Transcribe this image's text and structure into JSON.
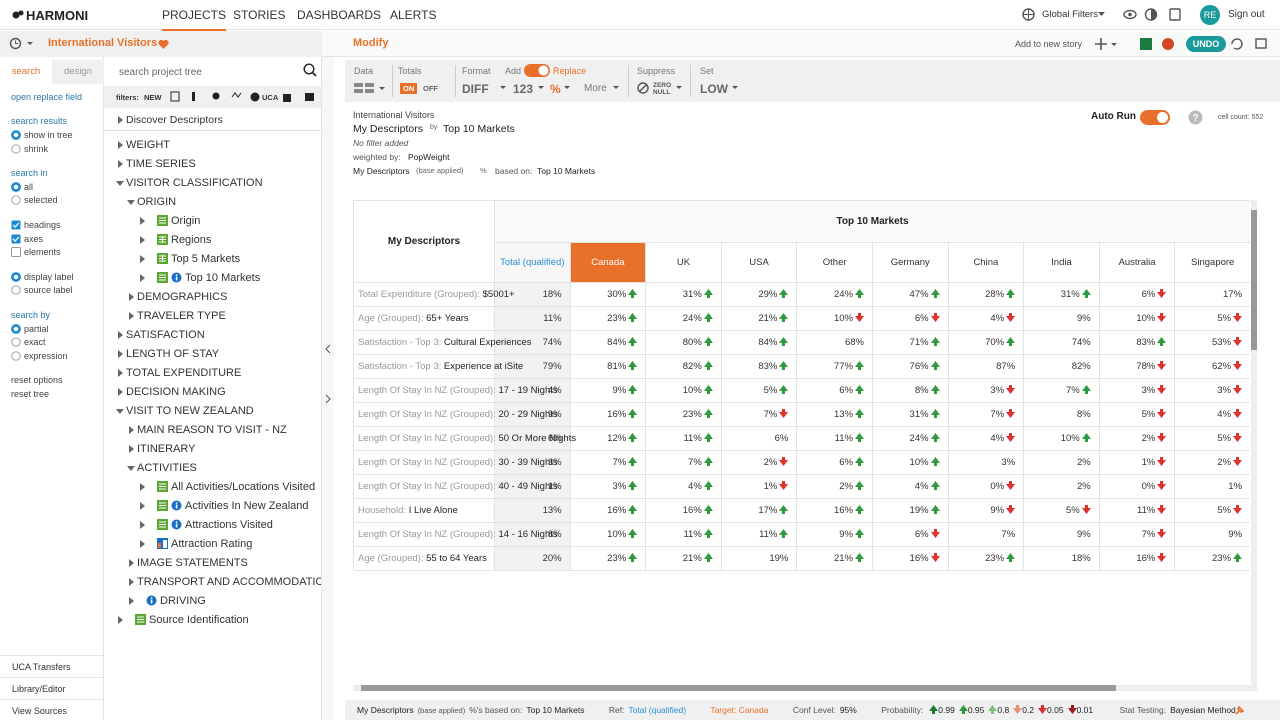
{
  "nav": {
    "logo": "HARMONI",
    "items": [
      "PROJECTS",
      "STORIES",
      "DASHBOARDS",
      "ALERTS"
    ],
    "active": 0,
    "global_filters": "Global Filters",
    "avatar": "RE",
    "sign_out": "Sign out"
  },
  "subbar": {
    "project": "International Visitors",
    "modify": "Modify",
    "add_story": "Add to new story",
    "undo": "UNDO"
  },
  "sidebar": {
    "tabs": [
      "search",
      "design"
    ],
    "active_tab": 0,
    "sections": [
      [
        {
          "text": "open replace field",
          "kind": "link"
        }
      ],
      [
        {
          "text": "search results",
          "kind": "link"
        },
        {
          "text": "show in tree",
          "kind": "radio",
          "checked": true
        },
        {
          "text": "shrink",
          "kind": "radio",
          "checked": false
        }
      ],
      [
        {
          "text": "search in",
          "kind": "link"
        },
        {
          "text": "all",
          "kind": "radio",
          "checked": true
        },
        {
          "text": "selected",
          "kind": "radio",
          "checked": false
        }
      ],
      [
        {
          "text": "headings",
          "kind": "check",
          "checked": true
        },
        {
          "text": "axes",
          "kind": "check",
          "checked": true
        },
        {
          "text": "elements",
          "kind": "check",
          "checked": false
        }
      ],
      [
        {
          "text": "display label",
          "kind": "radio",
          "checked": true
        },
        {
          "text": "source label",
          "kind": "radio",
          "checked": false
        }
      ],
      [
        {
          "text": "search by",
          "kind": "link"
        },
        {
          "text": "partial",
          "kind": "radio",
          "checked": true
        },
        {
          "text": "exact",
          "kind": "radio",
          "checked": false
        },
        {
          "text": "expression",
          "kind": "radio",
          "checked": false
        }
      ],
      [
        {
          "text": "reset options",
          "kind": "action"
        },
        {
          "text": "reset tree",
          "kind": "action"
        }
      ]
    ],
    "bottom": [
      "UCA Transfers",
      "Library/Editor",
      "View Sources"
    ]
  },
  "tree": {
    "search_placeholder": "search project tree",
    "filters_label": "filters:",
    "filters_new": "NEW",
    "filters_uca": "UCA",
    "items": [
      {
        "label": "Discover Descriptors",
        "level": 0,
        "expanded": false,
        "icons": []
      },
      {
        "label": "WEIGHT",
        "level": 0,
        "expanded": false,
        "icons": []
      },
      {
        "label": "TIME SERIES",
        "level": 0,
        "expanded": false,
        "icons": []
      },
      {
        "label": "VISITOR CLASSIFICATION",
        "level": 0,
        "expanded": true,
        "icons": []
      },
      {
        "label": "ORIGIN",
        "level": 1,
        "expanded": true,
        "icons": []
      },
      {
        "label": "Origin",
        "level": 2,
        "expanded": false,
        "icons": [
          "table"
        ]
      },
      {
        "label": "Regions",
        "level": 2,
        "expanded": false,
        "icons": [
          "grid"
        ]
      },
      {
        "label": "Top 5 Markets",
        "level": 2,
        "expanded": false,
        "icons": [
          "grid"
        ]
      },
      {
        "label": "Top 10 Markets",
        "level": 2,
        "expanded": false,
        "icons": [
          "table",
          "info"
        ]
      },
      {
        "label": "DEMOGRAPHICS",
        "level": 1,
        "expanded": false,
        "icons": []
      },
      {
        "label": "TRAVELER TYPE",
        "level": 1,
        "expanded": false,
        "icons": []
      },
      {
        "label": "SATISFACTION",
        "level": 0,
        "expanded": false,
        "icons": []
      },
      {
        "label": "LENGTH OF STAY",
        "level": 0,
        "expanded": false,
        "icons": []
      },
      {
        "label": "TOTAL EXPENDITURE",
        "level": 0,
        "expanded": false,
        "icons": []
      },
      {
        "label": "DECISION MAKING",
        "level": 0,
        "expanded": false,
        "icons": []
      },
      {
        "label": "VISIT TO NEW ZEALAND",
        "level": 0,
        "expanded": true,
        "icons": []
      },
      {
        "label": "MAIN REASON TO VISIT - NZ",
        "level": 1,
        "expanded": false,
        "icons": []
      },
      {
        "label": "ITINERARY",
        "level": 1,
        "expanded": false,
        "icons": []
      },
      {
        "label": "ACTIVITIES",
        "level": 1,
        "expanded": true,
        "icons": []
      },
      {
        "label": "All Activities/Locations Visited",
        "level": 2,
        "expanded": false,
        "icons": [
          "table"
        ]
      },
      {
        "label": "Activities In New Zealand",
        "level": 2,
        "expanded": false,
        "icons": [
          "table",
          "info"
        ]
      },
      {
        "label": "Attractions Visited",
        "level": 2,
        "expanded": false,
        "icons": [
          "table",
          "info"
        ]
      },
      {
        "label": "Attraction Rating",
        "level": 2,
        "expanded": false,
        "icons": [
          "chart"
        ]
      },
      {
        "label": "IMAGE STATEMENTS",
        "level": 1,
        "expanded": false,
        "icons": []
      },
      {
        "label": "TRANSPORT AND ACCOMMODATION",
        "level": 1,
        "expanded": false,
        "icons": []
      },
      {
        "label": "DRIVING",
        "level": 1,
        "expanded": false,
        "icons": [
          "info"
        ]
      },
      {
        "label": "Source Identification",
        "level": 0,
        "expanded": false,
        "icons": [
          "table"
        ]
      }
    ]
  },
  "toolbar": {
    "data": "Data",
    "totals": "Totals",
    "totals_on": "ON",
    "totals_off": "OFF",
    "format": "Format",
    "format_value": "DIFF",
    "add": "Add",
    "replace": "Replace",
    "number": "123",
    "percent": "%",
    "more": "More",
    "suppress": "Suppress",
    "zero": "ZERO",
    "null": "NULL",
    "set": "Set",
    "set_value": "LOW"
  },
  "report": {
    "title": "International Visitors",
    "rows_label": "My Descriptors",
    "by": "by",
    "cols_label": "Top 10 Markets",
    "filter": "No filter added",
    "weighted_by": "weighted by:",
    "weight": "PopWeight",
    "base_rows": "My Descriptors",
    "base_applied": "(base applied)",
    "pct": "%",
    "based_on": "based on:",
    "base_cols": "Top 10 Markets",
    "auto_run": "Auto Run",
    "cell_count": "cell count: 552"
  },
  "table": {
    "corner": "My Descriptors",
    "banner": "Top 10 Markets",
    "columns": [
      "Total (qualified)",
      "Canada",
      "UK",
      "USA",
      "Other",
      "Germany",
      "China",
      "India",
      "Australia",
      "Singapore"
    ],
    "highlight_column": 1,
    "rows": [
      {
        "prefix": "Total Expenditure (Grouped):",
        "label": "$5001+",
        "cells": [
          "18%",
          "30%",
          "31%",
          "29%",
          "24%",
          "47%",
          "28%",
          "31%",
          "6%",
          "17%"
        ],
        "arrows": [
          null,
          "up",
          "up",
          "up",
          "up",
          "up",
          "up",
          "up",
          "down",
          null
        ]
      },
      {
        "prefix": "Age (Grouped):",
        "label": "65+ Years",
        "cells": [
          "11%",
          "23%",
          "24%",
          "21%",
          "10%",
          "6%",
          "4%",
          "9%",
          "10%",
          "5%"
        ],
        "arrows": [
          null,
          "up",
          "up",
          "up",
          "down",
          "down",
          "down",
          null,
          "down",
          "down"
        ]
      },
      {
        "prefix": "Satisfaction - Top 3:",
        "label": "Cultural Experiences",
        "cells": [
          "74%",
          "84%",
          "80%",
          "84%",
          "68%",
          "71%",
          "70%",
          "74%",
          "83%",
          "53%"
        ],
        "arrows": [
          null,
          "up",
          "up",
          "up",
          null,
          "up",
          "up",
          null,
          "up",
          "down"
        ]
      },
      {
        "prefix": "Satisfaction - Top 3:",
        "label": "Experience at iSite",
        "cells": [
          "79%",
          "81%",
          "82%",
          "83%",
          "77%",
          "76%",
          "87%",
          "82%",
          "78%",
          "62%"
        ],
        "arrows": [
          null,
          "up",
          "up",
          "up",
          "up",
          "up",
          null,
          null,
          "down",
          "down"
        ]
      },
      {
        "prefix": "Length Of Stay In NZ (Grouped):",
        "label": "17 - 19 Nights",
        "cells": [
          "4%",
          "9%",
          "10%",
          "5%",
          "6%",
          "8%",
          "3%",
          "7%",
          "3%",
          "3%"
        ],
        "arrows": [
          null,
          "up",
          "up",
          "up",
          "up",
          "up",
          "down",
          "up",
          "down",
          "down"
        ]
      },
      {
        "prefix": "Length Of Stay In NZ (Grouped):",
        "label": "20 - 29 Nights",
        "cells": [
          "9%",
          "16%",
          "23%",
          "7%",
          "13%",
          "31%",
          "7%",
          "8%",
          "5%",
          "4%"
        ],
        "arrows": [
          null,
          "up",
          "up",
          "down",
          "up",
          "up",
          "down",
          null,
          "down",
          "down"
        ]
      },
      {
        "prefix": "Length Of Stay In NZ (Grouped):",
        "label": "50 Or More Nights",
        "cells": [
          "6%",
          "12%",
          "11%",
          "6%",
          "11%",
          "24%",
          "4%",
          "10%",
          "2%",
          "5%"
        ],
        "arrows": [
          null,
          "up",
          "up",
          null,
          "up",
          "up",
          "down",
          "up",
          "down",
          "down"
        ]
      },
      {
        "prefix": "Length Of Stay In NZ (Grouped):",
        "label": "30 - 39 Nights",
        "cells": [
          "3%",
          "7%",
          "7%",
          "2%",
          "6%",
          "10%",
          "3%",
          "2%",
          "1%",
          "2%"
        ],
        "arrows": [
          null,
          "up",
          "up",
          "down",
          "up",
          "up",
          null,
          null,
          "down",
          "down"
        ]
      },
      {
        "prefix": "Length Of Stay In NZ (Grouped):",
        "label": "40 - 49 Nights",
        "cells": [
          "1%",
          "3%",
          "4%",
          "1%",
          "2%",
          "4%",
          "0%",
          "2%",
          "0%",
          "1%"
        ],
        "arrows": [
          null,
          "up",
          "up",
          "down",
          "up",
          "up",
          "down",
          null,
          "down",
          null
        ]
      },
      {
        "prefix": "Household:",
        "label": "I Live Alone",
        "cells": [
          "13%",
          "16%",
          "16%",
          "17%",
          "16%",
          "19%",
          "9%",
          "5%",
          "11%",
          "5%"
        ],
        "arrows": [
          null,
          "up",
          "up",
          "up",
          "up",
          "up",
          "down",
          "down",
          "down",
          "down"
        ]
      },
      {
        "prefix": "Length Of Stay In NZ (Grouped):",
        "label": "14 - 16 Nights",
        "cells": [
          "8%",
          "10%",
          "11%",
          "11%",
          "9%",
          "6%",
          "7%",
          "9%",
          "7%",
          "9%"
        ],
        "arrows": [
          null,
          "up",
          "up",
          "up",
          "up",
          "down",
          null,
          null,
          "down",
          null
        ]
      },
      {
        "prefix": "Age (Grouped):",
        "label": "55 to 64 Years",
        "cells": [
          "20%",
          "23%",
          "21%",
          "19%",
          "21%",
          "16%",
          "23%",
          "18%",
          "16%",
          "23%"
        ],
        "arrows": [
          null,
          "up",
          "up",
          null,
          "up",
          "down",
          "up",
          null,
          "down",
          "up"
        ]
      }
    ]
  },
  "status": {
    "rows": "My Descriptors",
    "base_applied": "(base applied)",
    "based_on": "%'s based on:",
    "cols": "Top 10 Markets",
    "ref_label": "Ref:",
    "ref": "Total (qualified)",
    "target": "Target: Canada",
    "conf_label": "Conf Level:",
    "conf": "95%",
    "prob_label": "Probability:",
    "probabilities": [
      {
        "dir": "up",
        "text": "0.99",
        "color": "#1e7a2e"
      },
      {
        "dir": "up",
        "text": "0.95",
        "color": "#2e9a3e"
      },
      {
        "dir": "up",
        "text": "0.8",
        "color": "#7cc27e"
      },
      {
        "dir": "down",
        "text": "0.2",
        "color": "#f08a7a"
      },
      {
        "dir": "down",
        "text": "0.05",
        "color": "#e0302a"
      },
      {
        "dir": "down",
        "text": "0.01",
        "color": "#a01818"
      }
    ],
    "stat_label": "Stat Testing:",
    "stat": "Bayesian Method"
  }
}
